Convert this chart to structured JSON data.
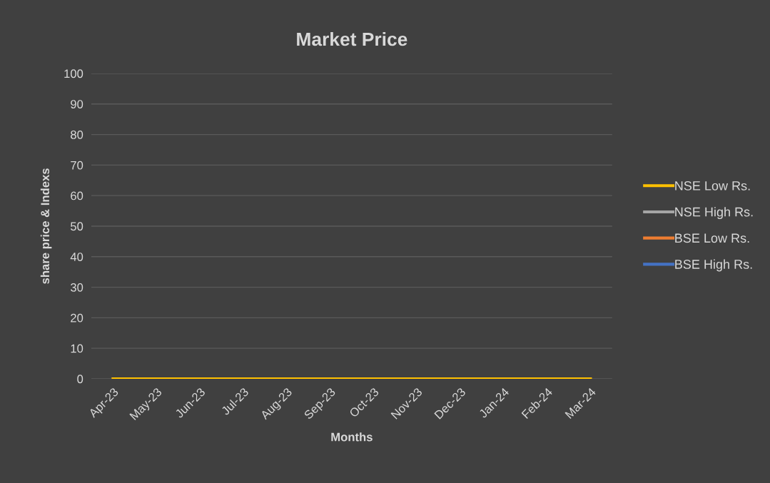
{
  "chart_data": {
    "type": "line",
    "title": "Market Price",
    "xlabel": "Months",
    "ylabel": "share price & Indexs",
    "categories": [
      "Apr-23",
      "May-23",
      "Jun-23",
      "Jul-23",
      "Aug-23",
      "Sep-23",
      "Oct-23",
      "Nov-23",
      "Dec-23",
      "Jan-24",
      "Feb-24",
      "Mar-24"
    ],
    "series": [
      {
        "name": "NSE Low Rs.",
        "color": "#ffc000",
        "values": [
          0,
          0,
          0,
          0,
          0,
          0,
          0,
          0,
          0,
          0,
          0,
          0
        ]
      },
      {
        "name": "NSE High Rs.",
        "color": "#a5a5a5",
        "values": [
          null,
          null,
          null,
          null,
          null,
          null,
          null,
          null,
          null,
          null,
          null,
          null
        ]
      },
      {
        "name": "BSE Low Rs.",
        "color": "#ed7d31",
        "values": [
          null,
          null,
          null,
          null,
          null,
          null,
          null,
          null,
          null,
          null,
          null,
          null
        ]
      },
      {
        "name": "BSE High Rs.",
        "color": "#4472c4",
        "values": [
          null,
          null,
          null,
          null,
          null,
          null,
          null,
          null,
          null,
          null,
          null,
          null
        ]
      }
    ],
    "ylim": [
      0,
      100
    ],
    "yticks": [
      0,
      10,
      20,
      30,
      40,
      50,
      60,
      70,
      80,
      90,
      100
    ],
    "grid": "y",
    "legend": "right",
    "marker": "none",
    "line_style": "solid"
  }
}
